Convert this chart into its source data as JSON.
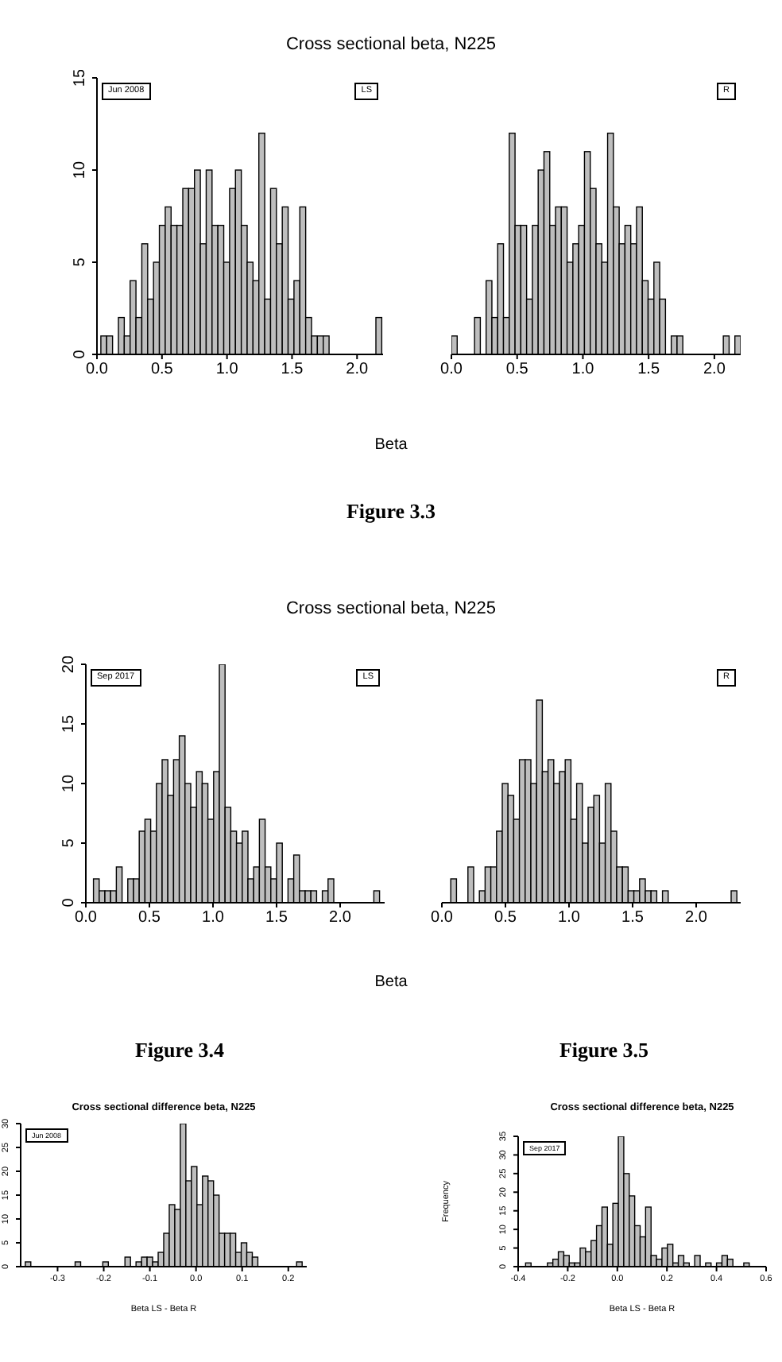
{
  "chart_data": [
    {
      "type": "histogram",
      "title": "Cross sectional beta, N225",
      "xlabel": "Beta",
      "subtitle": "Figure 3.3",
      "annotations": [
        "Jun 2008"
      ],
      "legend_title": "LS",
      "color": "#bebebe",
      "bins": [
        0.03,
        0.075,
        0.12,
        0.165,
        0.21,
        0.255,
        0.3,
        0.345,
        0.39,
        0.435,
        0.48,
        0.525,
        0.57,
        0.615,
        0.66,
        0.705,
        0.75,
        0.795,
        0.84,
        0.885,
        0.93,
        0.975,
        1.02,
        1.065,
        1.11,
        1.155,
        1.2,
        1.245,
        1.29,
        1.335,
        1.38,
        1.425,
        1.47,
        1.515,
        1.56,
        1.605,
        1.65,
        1.695,
        1.74,
        1.785,
        1.83,
        1.875,
        1.92,
        1.965,
        2.01,
        2.055,
        2.1,
        2.145,
        2.19
      ],
      "values": [
        1,
        1,
        0,
        2,
        1,
        4,
        2,
        6,
        3,
        5,
        7,
        8,
        7,
        7,
        9,
        9,
        10,
        6,
        10,
        7,
        7,
        5,
        9,
        10,
        7,
        5,
        4,
        12,
        3,
        9,
        6,
        8,
        3,
        4,
        8,
        2,
        1,
        1,
        1,
        0,
        0,
        0,
        0,
        0,
        0,
        0,
        0,
        2
      ],
      "xlim": [
        0,
        2.2
      ],
      "xticks": [
        {
          "value": 0,
          "label": "0.0"
        },
        0.5,
        {
          "value": 1,
          "label": "1.0"
        },
        1.5,
        {
          "value": 2,
          "label": "2.0"
        }
      ],
      "ylim": [
        0,
        15
      ],
      "yticks": [
        0,
        5,
        10,
        15
      ]
    },
    {
      "type": "histogram",
      "legend_title": "R",
      "color": "#bebebe",
      "tick_labels": "x",
      "bins": [
        0,
        0.044,
        0.088,
        0.132,
        0.176,
        0.22,
        0.264,
        0.308,
        0.352,
        0.396,
        0.44,
        0.484,
        0.528,
        0.572,
        0.616,
        0.66,
        0.704,
        0.748,
        0.792,
        0.836,
        0.88,
        0.924,
        0.968,
        1.012,
        1.056,
        1.1,
        1.144,
        1.188,
        1.232,
        1.276,
        1.32,
        1.364,
        1.408,
        1.452,
        1.496,
        1.54,
        1.584,
        1.628,
        1.672,
        1.716,
        1.76,
        1.804,
        1.848,
        1.892,
        1.936,
        1.98,
        2.024,
        2.068,
        2.112,
        2.156,
        2.2
      ],
      "values": [
        1,
        0,
        0,
        0,
        2,
        0,
        4,
        2,
        6,
        2,
        12,
        7,
        7,
        3,
        7,
        10,
        11,
        7,
        8,
        8,
        5,
        6,
        7,
        11,
        9,
        6,
        5,
        12,
        8,
        6,
        7,
        6,
        8,
        4,
        3,
        5,
        3,
        0,
        1,
        1,
        0,
        0,
        0,
        0,
        0,
        0,
        0,
        1,
        0,
        1
      ],
      "xlim": [
        0,
        2.2
      ],
      "xticks": [
        {
          "value": 0,
          "label": "0.0"
        },
        0.5,
        {
          "value": 1,
          "label": "1.0"
        },
        1.5,
        {
          "value": 2,
          "label": "2.0"
        }
      ],
      "ylim": [
        0,
        15
      ]
    },
    {
      "type": "histogram",
      "title": "Cross sectional beta, N225",
      "xlabel": "Beta",
      "subtitle": "Figure 3.4",
      "annotations": [
        "Sep 2017"
      ],
      "legend_title": "LS",
      "color": "#bebebe",
      "bins": [
        0.06,
        0.105,
        0.15,
        0.195,
        0.24,
        0.285,
        0.33,
        0.375,
        0.42,
        0.465,
        0.51,
        0.555,
        0.6,
        0.645,
        0.69,
        0.735,
        0.78,
        0.825,
        0.87,
        0.915,
        0.96,
        1.005,
        1.05,
        1.095,
        1.14,
        1.185,
        1.23,
        1.275,
        1.32,
        1.365,
        1.41,
        1.455,
        1.5,
        1.545,
        1.59,
        1.635,
        1.68,
        1.725,
        1.77,
        1.815,
        1.86,
        1.905,
        1.95,
        1.995,
        2.04,
        2.085,
        2.13,
        2.175,
        2.22,
        2.265,
        2.31
      ],
      "values": [
        2,
        1,
        1,
        1,
        3,
        0,
        2,
        2,
        6,
        7,
        6,
        10,
        12,
        9,
        12,
        14,
        10,
        8,
        11,
        10,
        7,
        11,
        20,
        8,
        6,
        5,
        6,
        2,
        3,
        7,
        3,
        2,
        5,
        0,
        2,
        4,
        1,
        1,
        1,
        0,
        1,
        2,
        0,
        0,
        0,
        0,
        0,
        0,
        0,
        1
      ],
      "xlim": [
        0,
        2.35
      ],
      "xticks": [
        {
          "value": 0,
          "label": "0.0"
        },
        0.5,
        {
          "value": 1,
          "label": "1.0"
        },
        1.5,
        {
          "value": 2,
          "label": "2.0"
        }
      ],
      "ylim": [
        0,
        20
      ],
      "yticks": [
        0,
        5,
        10,
        15,
        20
      ]
    },
    {
      "type": "histogram",
      "subtitle": "Figure 3.5",
      "legend_title": "R",
      "color": "#bebebe",
      "tick_labels": "x",
      "bins": [
        0.07,
        0.115,
        0.16,
        0.205,
        0.25,
        0.295,
        0.34,
        0.385,
        0.43,
        0.475,
        0.52,
        0.565,
        0.61,
        0.655,
        0.7,
        0.745,
        0.79,
        0.835,
        0.88,
        0.925,
        0.97,
        1.015,
        1.06,
        1.105,
        1.15,
        1.195,
        1.24,
        1.285,
        1.33,
        1.375,
        1.42,
        1.465,
        1.51,
        1.555,
        1.6,
        1.645,
        1.69,
        1.735,
        1.78,
        1.825,
        1.87,
        1.915,
        1.96,
        2.005,
        2.05,
        2.095,
        2.14,
        2.185,
        2.23,
        2.275,
        2.32
      ],
      "values": [
        2,
        0,
        0,
        3,
        0,
        1,
        3,
        3,
        6,
        10,
        9,
        7,
        12,
        12,
        10,
        17,
        11,
        12,
        10,
        11,
        12,
        7,
        10,
        5,
        8,
        9,
        5,
        10,
        6,
        3,
        3,
        1,
        1,
        2,
        1,
        1,
        0,
        1,
        0,
        0,
        0,
        0,
        0,
        0,
        0,
        0,
        0,
        0,
        0,
        1
      ],
      "xlim": [
        0,
        2.35
      ],
      "xticks": [
        {
          "value": 0,
          "label": "0.0"
        },
        0.5,
        {
          "value": 1,
          "label": "1.0"
        },
        1.5,
        {
          "value": 2,
          "label": "2.0"
        }
      ],
      "ylim": [
        0,
        20
      ]
    },
    {
      "type": "histogram",
      "title": "Cross sectional difference beta, N225",
      "xlabel": "Beta LS - Beta R",
      "annotations": [
        "Jun 2008"
      ],
      "color": "#bebebe",
      "bins": [
        -0.37,
        -0.358,
        -0.346,
        -0.334,
        -0.322,
        -0.31,
        -0.298,
        -0.286,
        -0.274,
        -0.262,
        -0.25,
        -0.238,
        -0.226,
        -0.214,
        -0.202,
        -0.19,
        -0.178,
        -0.166,
        -0.154,
        -0.142,
        -0.13,
        -0.118,
        -0.106,
        -0.094,
        -0.082,
        -0.07,
        -0.058,
        -0.046,
        -0.034,
        -0.022,
        -0.01,
        0.002,
        0.014,
        0.026,
        0.038,
        0.05,
        0.062,
        0.074,
        0.086,
        0.098,
        0.11,
        0.122,
        0.134,
        0.146,
        0.158,
        0.17,
        0.182,
        0.194,
        0.206,
        0.218,
        0.23
      ],
      "values": [
        1,
        0,
        0,
        0,
        0,
        0,
        0,
        0,
        0,
        1,
        0,
        0,
        0,
        0,
        1,
        0,
        0,
        0,
        2,
        0,
        1,
        2,
        2,
        1,
        3,
        7,
        13,
        12,
        30,
        18,
        21,
        13,
        19,
        18,
        15,
        7,
        7,
        7,
        3,
        5,
        3,
        2,
        0,
        0,
        0,
        0,
        0,
        0,
        0,
        1
      ],
      "xlim": [
        -0.38,
        0.24
      ],
      "xticks": [
        -0.3,
        -0.2,
        -0.1,
        {
          "value": 0,
          "label": "0.0"
        },
        0.1,
        0.2
      ],
      "ylim": [
        0,
        30
      ],
      "yticks": [
        0,
        5,
        10,
        15,
        20,
        25,
        30
      ]
    },
    {
      "type": "histogram",
      "title": "Cross sectional difference beta, N225",
      "xlabel": "Beta LS - Beta R",
      "ylabel": "Frequency",
      "annotations": [
        "Sep 2017"
      ],
      "color": "#bebebe",
      "bins": [
        -0.37,
        -0.348,
        -0.326,
        -0.304,
        -0.282,
        -0.26,
        -0.238,
        -0.216,
        -0.194,
        -0.172,
        -0.15,
        -0.128,
        -0.106,
        -0.084,
        -0.062,
        -0.04,
        -0.018,
        0.004,
        0.026,
        0.048,
        0.07,
        0.092,
        0.114,
        0.136,
        0.158,
        0.18,
        0.202,
        0.224,
        0.246,
        0.268,
        0.29,
        0.312,
        0.334,
        0.356,
        0.378,
        0.4,
        0.422,
        0.444,
        0.466,
        0.488,
        0.51,
        0.532
      ],
      "values": [
        1,
        0,
        0,
        0,
        1,
        2,
        4,
        3,
        1,
        1,
        5,
        4,
        7,
        11,
        16,
        6,
        17,
        35,
        25,
        19,
        11,
        8,
        16,
        3,
        2,
        5,
        6,
        1,
        3,
        1,
        0,
        3,
        0,
        1,
        0,
        1,
        3,
        2,
        0,
        0,
        1
      ],
      "xlim": [
        -0.4,
        0.6
      ],
      "xticks": [
        -0.4,
        -0.2,
        {
          "value": 0,
          "label": "0.0"
        },
        0.2,
        0.4,
        0.6
      ],
      "ylim": [
        0,
        35
      ],
      "yticks": [
        0,
        5,
        10,
        15,
        20,
        25,
        30,
        35
      ]
    }
  ]
}
